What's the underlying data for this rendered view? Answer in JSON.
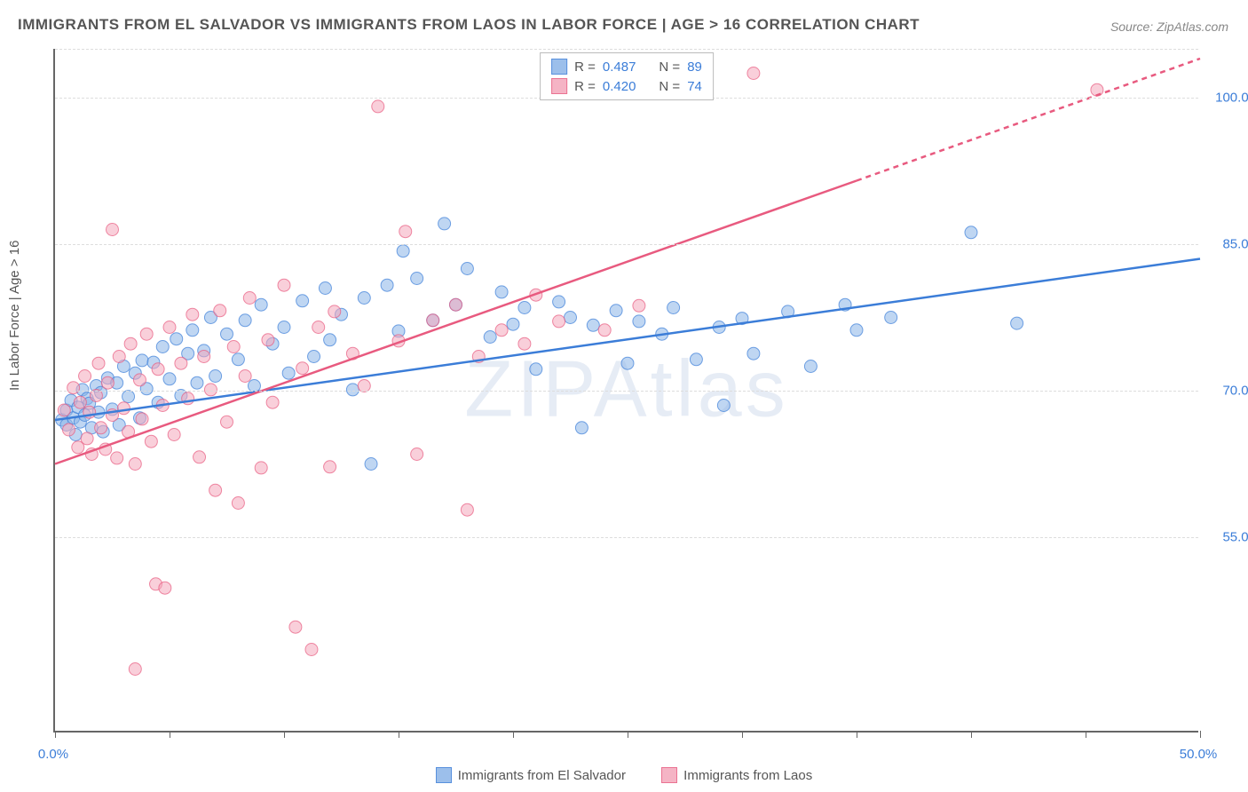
{
  "title": "IMMIGRANTS FROM EL SALVADOR VS IMMIGRANTS FROM LAOS IN LABOR FORCE | AGE > 16 CORRELATION CHART",
  "source": "Source: ZipAtlas.com",
  "watermark": "ZIPAtlas",
  "y_axis_label": "In Labor Force | Age > 16",
  "chart": {
    "type": "scatter-correlation",
    "background_color": "#ffffff",
    "grid_color": "#dddddd",
    "axis_color": "#666666",
    "xlim": [
      0.0,
      50.0
    ],
    "ylim": [
      35.0,
      105.0
    ],
    "x_ticks_minor": [
      0,
      5,
      10,
      15,
      20,
      25,
      30,
      35,
      40,
      45,
      50
    ],
    "x_tick_labels": [
      {
        "x": 0.0,
        "label": "0.0%"
      },
      {
        "x": 50.0,
        "label": "50.0%"
      }
    ],
    "y_gridlines": [
      55.0,
      70.0,
      85.0,
      100.0
    ],
    "y_tick_labels": [
      "55.0%",
      "70.0%",
      "85.0%",
      "100.0%"
    ],
    "point_radius": 7,
    "point_opacity": 0.55,
    "line_width": 2.5,
    "series": [
      {
        "name": "Immigrants from El Salvador",
        "color_fill": "#8bb4e8",
        "color_stroke": "#3b7dd8",
        "R": "0.487",
        "N": "89",
        "trend": {
          "x1": 0.0,
          "y1": 67.0,
          "x2": 50.0,
          "y2": 83.5,
          "dashed_from_x": 50.0
        },
        "points": [
          [
            0.3,
            67
          ],
          [
            0.5,
            68
          ],
          [
            0.5,
            66.5
          ],
          [
            0.7,
            69
          ],
          [
            0.8,
            67.2
          ],
          [
            0.9,
            65.5
          ],
          [
            1.0,
            68.3
          ],
          [
            1.1,
            66.8
          ],
          [
            1.2,
            70.1
          ],
          [
            1.3,
            67.5
          ],
          [
            1.4,
            69.2
          ],
          [
            1.5,
            68.7
          ],
          [
            1.6,
            66.2
          ],
          [
            1.8,
            70.5
          ],
          [
            1.9,
            67.8
          ],
          [
            2.0,
            69.8
          ],
          [
            2.1,
            65.8
          ],
          [
            2.3,
            71.3
          ],
          [
            2.5,
            68.1
          ],
          [
            2.7,
            70.8
          ],
          [
            2.8,
            66.5
          ],
          [
            3.0,
            72.5
          ],
          [
            3.2,
            69.4
          ],
          [
            3.5,
            71.8
          ],
          [
            3.7,
            67.2
          ],
          [
            3.8,
            73.1
          ],
          [
            4.0,
            70.2
          ],
          [
            4.3,
            72.9
          ],
          [
            4.5,
            68.8
          ],
          [
            4.7,
            74.5
          ],
          [
            5.0,
            71.2
          ],
          [
            5.3,
            75.3
          ],
          [
            5.5,
            69.5
          ],
          [
            5.8,
            73.8
          ],
          [
            6.0,
            76.2
          ],
          [
            6.2,
            70.8
          ],
          [
            6.5,
            74.1
          ],
          [
            6.8,
            77.5
          ],
          [
            7.0,
            71.5
          ],
          [
            7.5,
            75.8
          ],
          [
            8.0,
            73.2
          ],
          [
            8.3,
            77.2
          ],
          [
            8.7,
            70.5
          ],
          [
            9.0,
            78.8
          ],
          [
            9.5,
            74.8
          ],
          [
            10.0,
            76.5
          ],
          [
            10.2,
            71.8
          ],
          [
            10.8,
            79.2
          ],
          [
            11.3,
            73.5
          ],
          [
            11.8,
            80.5
          ],
          [
            12.0,
            75.2
          ],
          [
            12.5,
            77.8
          ],
          [
            13.0,
            70.1
          ],
          [
            13.5,
            79.5
          ],
          [
            13.8,
            62.5
          ],
          [
            14.5,
            80.8
          ],
          [
            15.0,
            76.1
          ],
          [
            15.2,
            84.3
          ],
          [
            15.8,
            81.5
          ],
          [
            16.5,
            77.2
          ],
          [
            17.0,
            87.1
          ],
          [
            17.5,
            78.8
          ],
          [
            18.0,
            82.5
          ],
          [
            19.0,
            75.5
          ],
          [
            19.5,
            80.1
          ],
          [
            20.0,
            76.8
          ],
          [
            20.5,
            78.5
          ],
          [
            21.0,
            72.2
          ],
          [
            22.0,
            79.1
          ],
          [
            22.5,
            77.5
          ],
          [
            23.0,
            66.2
          ],
          [
            23.5,
            76.7
          ],
          [
            24.5,
            78.2
          ],
          [
            25.0,
            72.8
          ],
          [
            25.5,
            77.1
          ],
          [
            26.5,
            75.8
          ],
          [
            27.0,
            78.5
          ],
          [
            28.0,
            73.2
          ],
          [
            29.0,
            76.5
          ],
          [
            29.2,
            68.5
          ],
          [
            30.0,
            77.4
          ],
          [
            30.5,
            73.8
          ],
          [
            32.0,
            78.1
          ],
          [
            33.0,
            72.5
          ],
          [
            34.5,
            78.8
          ],
          [
            35.0,
            76.2
          ],
          [
            36.5,
            77.5
          ],
          [
            40.0,
            86.2
          ],
          [
            42.0,
            76.9
          ]
        ]
      },
      {
        "name": "Immigrants from Laos",
        "color_fill": "#f4a8bb",
        "color_stroke": "#e85a7f",
        "R": "0.420",
        "N": "74",
        "trend": {
          "x1": 0.0,
          "y1": 62.5,
          "x2": 35.0,
          "y2": 91.5,
          "dashed_from_x": 35.0,
          "x2_ext": 50.0,
          "y2_ext": 104.0
        },
        "points": [
          [
            0.4,
            68
          ],
          [
            0.6,
            66
          ],
          [
            0.8,
            70.3
          ],
          [
            1.0,
            64.2
          ],
          [
            1.1,
            68.8
          ],
          [
            1.3,
            71.5
          ],
          [
            1.4,
            65.1
          ],
          [
            1.5,
            67.8
          ],
          [
            1.6,
            63.5
          ],
          [
            1.8,
            69.5
          ],
          [
            1.9,
            72.8
          ],
          [
            2.0,
            66.2
          ],
          [
            2.2,
            64.0
          ],
          [
            2.3,
            70.8
          ],
          [
            2.5,
            67.5
          ],
          [
            2.5,
            86.5
          ],
          [
            2.7,
            63.1
          ],
          [
            2.8,
            73.5
          ],
          [
            3.0,
            68.2
          ],
          [
            3.2,
            65.8
          ],
          [
            3.3,
            74.8
          ],
          [
            3.5,
            62.5
          ],
          [
            3.5,
            41.5
          ],
          [
            3.7,
            71.1
          ],
          [
            3.8,
            67.1
          ],
          [
            4.0,
            75.8
          ],
          [
            4.2,
            64.8
          ],
          [
            4.4,
            50.2
          ],
          [
            4.5,
            72.2
          ],
          [
            4.7,
            68.5
          ],
          [
            4.8,
            49.8
          ],
          [
            5.0,
            76.5
          ],
          [
            5.2,
            65.5
          ],
          [
            5.5,
            72.8
          ],
          [
            5.8,
            69.2
          ],
          [
            6.0,
            77.8
          ],
          [
            6.3,
            63.2
          ],
          [
            6.5,
            73.5
          ],
          [
            6.8,
            70.1
          ],
          [
            7.0,
            59.8
          ],
          [
            7.2,
            78.2
          ],
          [
            7.5,
            66.8
          ],
          [
            7.8,
            74.5
          ],
          [
            8.0,
            58.5
          ],
          [
            8.3,
            71.5
          ],
          [
            8.5,
            79.5
          ],
          [
            9.0,
            62.1
          ],
          [
            9.3,
            75.2
          ],
          [
            9.5,
            68.8
          ],
          [
            10.0,
            80.8
          ],
          [
            10.5,
            45.8
          ],
          [
            10.8,
            72.3
          ],
          [
            11.2,
            43.5
          ],
          [
            11.5,
            76.5
          ],
          [
            12.0,
            62.2
          ],
          [
            12.2,
            78.1
          ],
          [
            13.0,
            73.8
          ],
          [
            13.5,
            70.5
          ],
          [
            14.1,
            99.1
          ],
          [
            15.0,
            75.1
          ],
          [
            15.3,
            86.3
          ],
          [
            15.8,
            63.5
          ],
          [
            16.5,
            77.2
          ],
          [
            17.5,
            78.8
          ],
          [
            18.0,
            57.8
          ],
          [
            18.5,
            73.5
          ],
          [
            19.5,
            76.2
          ],
          [
            20.5,
            74.8
          ],
          [
            21.0,
            79.8
          ],
          [
            22.0,
            77.1
          ],
          [
            24.0,
            76.2
          ],
          [
            25.5,
            78.7
          ],
          [
            30.5,
            102.5
          ],
          [
            45.5,
            100.8
          ]
        ]
      }
    ]
  },
  "legend_top": {
    "R_label": "R =",
    "N_label": "N ="
  },
  "legend_bottom_labels": [
    "Immigrants from El Salvador",
    "Immigrants from Laos"
  ]
}
